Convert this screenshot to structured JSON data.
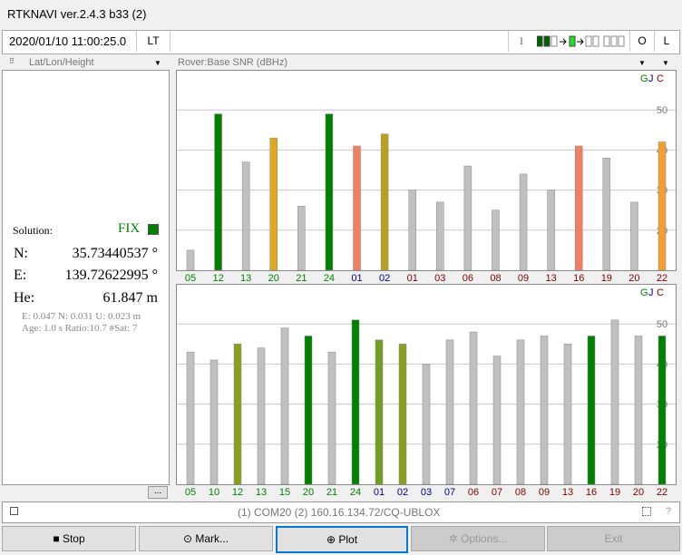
{
  "window": {
    "title": "RTKNAVI ver.2.4.3 b33 (2)"
  },
  "toolbar": {
    "time": "2020/01/10 11:00:25.0",
    "time_mode": "LT",
    "input_label": "I",
    "output_label": "O",
    "log_label": "L"
  },
  "left_panel": {
    "header": "Lat/Lon/Height",
    "solution_label": "Solution:",
    "solution_status": "FIX",
    "status_color": "#008000",
    "n_label": "N:",
    "n_value": "35.73440537 °",
    "e_label": "E:",
    "e_value": "139.72622995 °",
    "h_label": "He:",
    "h_value": "61.847 m",
    "stats1": "E: 0.047 N: 0.031 U: 0.023 m",
    "stats2": "Age: 1.0 s Ratio:10.7 #Sat: 7",
    "more_button": "..."
  },
  "right_panel": {
    "header": "Rover:Base SNR (dBHz)"
  },
  "status_bar": {
    "text": "(1) COM20 (2) 160.16.134.72/CQ-UBLOX",
    "help": "?"
  },
  "buttons": {
    "stop": "Stop",
    "mark": "Mark...",
    "plot": "Plot",
    "options": "Options...",
    "exit": "Exit"
  },
  "chart_data": [
    {
      "type": "bar",
      "title": "Rover",
      "ylim": [
        10,
        55
      ],
      "yticks": [
        20,
        30,
        40,
        50
      ],
      "grid": true,
      "legend": [
        "G",
        "J",
        "C"
      ],
      "legend_placement": "top-right",
      "categories": [
        "05",
        "12",
        "13",
        "20",
        "21",
        "24",
        "01",
        "02",
        "01",
        "03",
        "06",
        "08",
        "09",
        "13",
        "16",
        "19",
        "20",
        "22"
      ],
      "systems": [
        "G",
        "G",
        "G",
        "G",
        "G",
        "G",
        "J",
        "J",
        "C",
        "C",
        "C",
        "C",
        "C",
        "C",
        "C",
        "C",
        "C",
        "C"
      ],
      "values": [
        15,
        49,
        37,
        43,
        26,
        49,
        41,
        44,
        30,
        27,
        36,
        25,
        34,
        30,
        41,
        38,
        27,
        42
      ],
      "colors": [
        "#c0c0c0",
        "#008000",
        "#c0c0c0",
        "#e0a820",
        "#c0c0c0",
        "#008000",
        "#f08060",
        "#b8a020",
        "#c0c0c0",
        "#c0c0c0",
        "#c0c0c0",
        "#c0c0c0",
        "#c0c0c0",
        "#c0c0c0",
        "#f08060",
        "#c0c0c0",
        "#c0c0c0",
        "#f0a030"
      ]
    },
    {
      "type": "bar",
      "title": "Base",
      "ylim": [
        10,
        55
      ],
      "yticks": [
        20,
        30,
        40,
        50
      ],
      "grid": true,
      "legend": [
        "G",
        "J",
        "C"
      ],
      "legend_placement": "top-right",
      "categories": [
        "05",
        "10",
        "12",
        "13",
        "15",
        "20",
        "21",
        "24",
        "01",
        "02",
        "03",
        "07",
        "06",
        "07",
        "08",
        "09",
        "13",
        "16",
        "19",
        "20",
        "22"
      ],
      "systems": [
        "G",
        "G",
        "G",
        "G",
        "G",
        "G",
        "G",
        "G",
        "J",
        "J",
        "J",
        "J",
        "C",
        "C",
        "C",
        "C",
        "C",
        "C",
        "C",
        "C",
        "C"
      ],
      "values": [
        43,
        41,
        45,
        44,
        49,
        47,
        43,
        51,
        46,
        45,
        40,
        46,
        48,
        42,
        46,
        47,
        45,
        47,
        51,
        47,
        47
      ],
      "colors": [
        "#c0c0c0",
        "#c0c0c0",
        "#88a020",
        "#c0c0c0",
        "#c0c0c0",
        "#008000",
        "#c0c0c0",
        "#008000",
        "#70a020",
        "#88a020",
        "#c0c0c0",
        "#c0c0c0",
        "#c0c0c0",
        "#c0c0c0",
        "#c0c0c0",
        "#c0c0c0",
        "#c0c0c0",
        "#008000",
        "#c0c0c0",
        "#c0c0c0",
        "#008000"
      ]
    }
  ],
  "system_colors": {
    "G": "#008000",
    "J": "#000080",
    "C": "#800000"
  }
}
